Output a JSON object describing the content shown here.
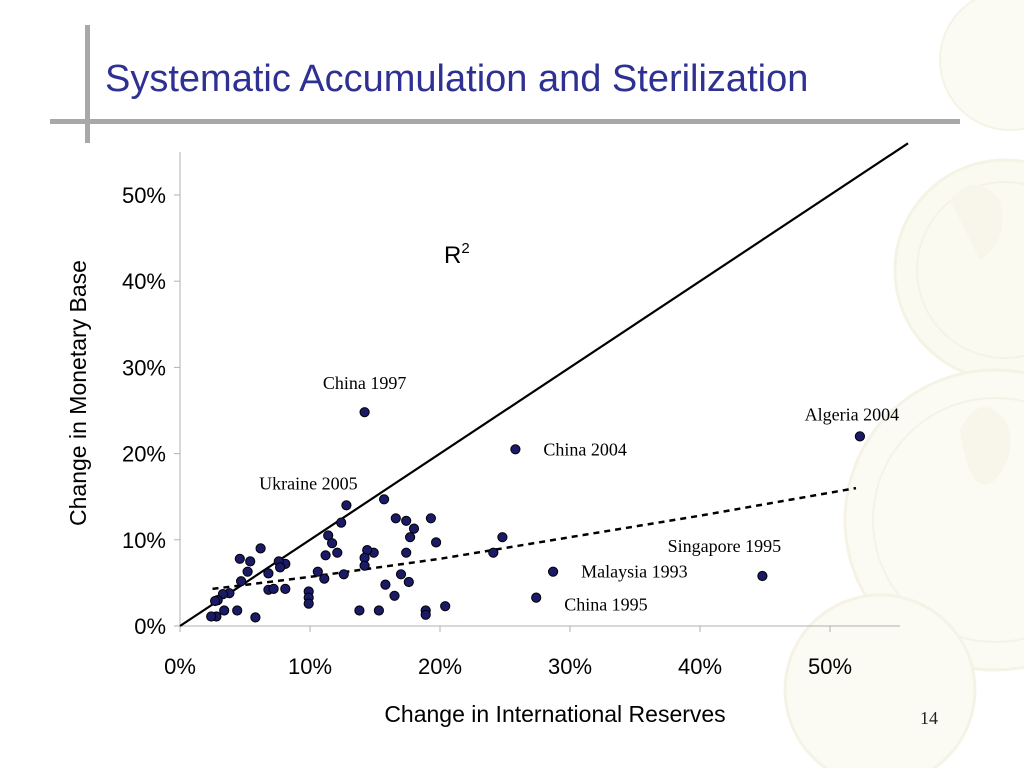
{
  "slide": {
    "title": "Systematic Accumulation and Sterilization",
    "page_number": "14",
    "accent_color": "#2e3192",
    "rule_color": "#a8a8a8",
    "background_motif": "gold-coin-watermark"
  },
  "chart_data": {
    "type": "scatter",
    "title": "",
    "xlabel": "Change in International Reserves",
    "ylabel": "Change in Monetary Base",
    "xlim": [
      0,
      55
    ],
    "ylim": [
      0,
      55
    ],
    "x_ticks": [
      0,
      10,
      20,
      30,
      40,
      50
    ],
    "y_ticks": [
      0,
      10,
      20,
      30,
      40,
      50
    ],
    "x_tick_labels": [
      "0%",
      "10%",
      "20%",
      "30%",
      "40%",
      "50%"
    ],
    "y_tick_labels": [
      "0%",
      "10%",
      "20%",
      "30%",
      "40%",
      "50%"
    ],
    "grid": false,
    "legend": "none",
    "point_color": "#1a1a66",
    "r2_label": "R",
    "r2_superscript": "2",
    "reference_line": {
      "style": "solid",
      "points": [
        [
          0,
          0
        ],
        [
          56,
          56
        ]
      ]
    },
    "fit_line": {
      "style": "dashed",
      "points": [
        [
          2.5,
          4.3
        ],
        [
          10,
          5.7
        ],
        [
          20,
          7.8
        ],
        [
          30,
          10.3
        ],
        [
          40,
          12.8
        ],
        [
          52,
          16
        ]
      ]
    },
    "annotations": [
      {
        "text": "China 1997",
        "x": 14.2,
        "y": 24.8
      },
      {
        "text": "China 2004",
        "x": 25.8,
        "y": 20.5
      },
      {
        "text": "Algeria 2004",
        "x": 52.3,
        "y": 22
      },
      {
        "text": "Ukraine 2005",
        "x": 12.8,
        "y": 14
      },
      {
        "text": "Singapore 1995",
        "x": 44.8,
        "y": 5.8
      },
      {
        "text": "Malaysia 1993",
        "x": 28.7,
        "y": 6.3
      },
      {
        "text": "China 1995",
        "x": 27.4,
        "y": 3.3
      }
    ],
    "points": [
      [
        14.2,
        24.8
      ],
      [
        25.8,
        20.5
      ],
      [
        52.3,
        22
      ],
      [
        44.8,
        5.8
      ],
      [
        28.7,
        6.3
      ],
      [
        27.4,
        3.3
      ],
      [
        12.8,
        14
      ],
      [
        15.7,
        14.7
      ],
      [
        19.3,
        12.5
      ],
      [
        16.6,
        12.5
      ],
      [
        17.4,
        12.2
      ],
      [
        12.4,
        12
      ],
      [
        11.4,
        10.5
      ],
      [
        11.7,
        9.6
      ],
      [
        17.7,
        10.3
      ],
      [
        18,
        11.3
      ],
      [
        24.8,
        10.3
      ],
      [
        24.1,
        8.5
      ],
      [
        19.7,
        9.7
      ],
      [
        17.4,
        8.5
      ],
      [
        14.9,
        8.5
      ],
      [
        14.4,
        8.8
      ],
      [
        12.1,
        8.5
      ],
      [
        11.2,
        8.2
      ],
      [
        14.2,
        7.9
      ],
      [
        10.6,
        6.3
      ],
      [
        12.6,
        6
      ],
      [
        14.2,
        7
      ],
      [
        17,
        6
      ],
      [
        17.6,
        5.1
      ],
      [
        15.8,
        4.8
      ],
      [
        16.5,
        3.5
      ],
      [
        11.1,
        5.5
      ],
      [
        9.9,
        4
      ],
      [
        9.9,
        3.3
      ],
      [
        9.9,
        2.6
      ],
      [
        20.4,
        2.3
      ],
      [
        18.9,
        1.8
      ],
      [
        18.9,
        1.3
      ],
      [
        15.3,
        1.8
      ],
      [
        13.8,
        1.8
      ],
      [
        5.8,
        1
      ],
      [
        6.2,
        9
      ],
      [
        4.6,
        7.8
      ],
      [
        5.4,
        7.5
      ],
      [
        8.1,
        7.2
      ],
      [
        7.6,
        7.5
      ],
      [
        7.7,
        6.8
      ],
      [
        6.8,
        6.1
      ],
      [
        5.2,
        6.3
      ],
      [
        4.7,
        5.2
      ],
      [
        6.8,
        4.2
      ],
      [
        7.2,
        4.3
      ],
      [
        8.1,
        4.3
      ],
      [
        3.8,
        3.8
      ],
      [
        3.3,
        3.7
      ],
      [
        2.9,
        3
      ],
      [
        2.7,
        2.9
      ],
      [
        3.4,
        1.8
      ],
      [
        4.4,
        1.8
      ],
      [
        2.8,
        1.1
      ],
      [
        2.4,
        1.1
      ]
    ]
  }
}
